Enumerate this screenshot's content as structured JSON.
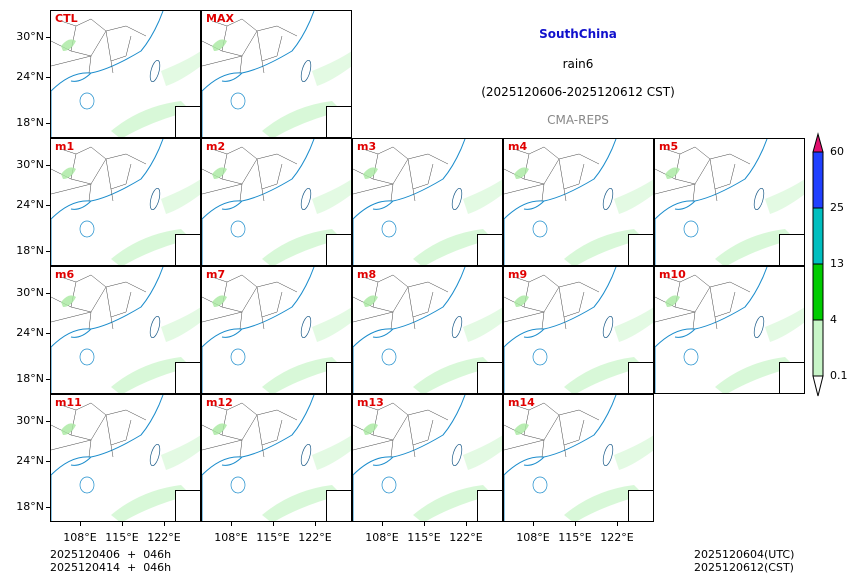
{
  "chart_data": {
    "type": "heatmap",
    "title": "SouthChina",
    "subtitle": "rain6",
    "period": "(2025120606-2025120612 CST)",
    "source": "CMA-REPS",
    "panels": [
      "CTL",
      "MAX",
      "m1",
      "m2",
      "m3",
      "m4",
      "m5",
      "m6",
      "m7",
      "m8",
      "m9",
      "m10",
      "m11",
      "m12",
      "m13",
      "m14"
    ],
    "xticks": [
      "108°E",
      "115°E",
      "122°E"
    ],
    "yticks": [
      "30°N",
      "24°N",
      "18°N"
    ],
    "colorbar": {
      "levels": [
        "0.1",
        "4",
        "13",
        "25",
        "60"
      ],
      "colors": [
        "#ffffff",
        "#c8f5c8",
        "#00cc00",
        "#00bfbf",
        "#2040ff",
        "#e0106e"
      ],
      "extend": "both"
    },
    "footer_left": [
      "2025120406  +  046h",
      "2025120414  +  046h"
    ],
    "footer_right": [
      "2025120604(UTC)",
      "2025120612(CST)"
    ]
  },
  "header": {
    "region": "SouthChina",
    "variable": "rain6",
    "period": "(2025120606-2025120612 CST)",
    "model": "CMA-REPS"
  },
  "panels": {
    "p0": "CTL",
    "p1": "MAX",
    "p2": "m1",
    "p3": "m2",
    "p4": "m3",
    "p5": "m4",
    "p6": "m5",
    "p7": "m6",
    "p8": "m7",
    "p9": "m8",
    "p10": "m9",
    "p11": "m10",
    "p12": "m11",
    "p13": "m12",
    "p14": "m13",
    "p15": "m14"
  },
  "axes": {
    "y": [
      "30°N",
      "24°N",
      "18°N"
    ],
    "x": [
      "108°E",
      "115°E",
      "122°E"
    ]
  },
  "colorbar": {
    "l0": "0.1",
    "l1": "4",
    "l2": "13",
    "l3": "25",
    "l4": "60"
  },
  "footer": {
    "init1": "2025120406  +  046h",
    "init2": "2025120414  +  046h",
    "utc": "2025120604(UTC)",
    "cst": "2025120612(CST)"
  }
}
